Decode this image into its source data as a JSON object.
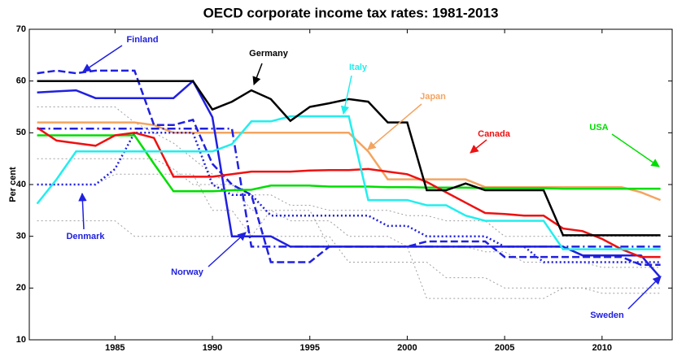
{
  "chart_data": {
    "type": "line",
    "title": "OECD corporate income tax rates: 1981-2013",
    "y_label": "Per cent",
    "x": [
      1981,
      1982,
      1983,
      1984,
      1985,
      1986,
      1987,
      1988,
      1989,
      1990,
      1991,
      1992,
      1993,
      1994,
      1995,
      1996,
      1997,
      1998,
      1999,
      2000,
      2001,
      2002,
      2003,
      2004,
      2005,
      2006,
      2007,
      2008,
      2009,
      2010,
      2011,
      2012,
      2013
    ],
    "xlim": [
      1980.6,
      2013.6
    ],
    "xticks": [
      1985,
      1990,
      1995,
      2000,
      2005,
      2010
    ],
    "ylim": [
      10,
      70
    ],
    "yticks": [
      10,
      20,
      30,
      40,
      50,
      60,
      70
    ],
    "series": [
      {
        "color": "#a0a0a0",
        "dash": "dotted",
        "values": [
          55,
          55,
          55,
          55,
          55,
          52,
          50,
          48,
          45,
          42,
          40,
          38,
          38,
          36,
          36,
          35,
          35,
          35,
          35,
          34,
          34,
          33,
          33,
          33,
          30,
          30,
          30,
          30,
          30,
          30,
          30,
          30,
          30
        ]
      },
      {
        "color": "#a0a0a0",
        "dash": "dotted",
        "values": [
          45,
          45,
          45,
          45,
          45,
          45,
          45,
          43,
          40,
          40,
          40,
          35,
          35,
          33,
          33,
          33,
          30,
          30,
          30,
          28,
          28,
          28,
          28,
          27,
          27,
          25,
          25,
          25,
          25,
          24,
          24,
          24,
          24
        ]
      },
      {
        "color": "#a0a0a0",
        "dash": "dotted",
        "values": [
          40,
          40,
          40,
          40,
          42,
          42,
          42,
          42,
          42,
          35,
          35,
          30,
          30,
          30,
          30,
          30,
          25,
          25,
          25,
          25,
          25,
          22,
          22,
          22,
          20,
          20,
          20,
          20,
          20,
          19,
          19,
          19,
          19
        ]
      },
      {
        "color": "#a0a0a0",
        "dash": "dotted",
        "values": [
          33,
          33,
          33,
          33,
          33,
          30,
          30,
          30,
          30,
          30,
          30,
          30,
          35,
          35,
          35,
          28,
          28,
          28,
          28,
          28,
          18,
          18,
          18,
          18,
          18,
          18,
          18,
          20,
          20,
          20,
          20,
          20,
          20
        ]
      },
      {
        "name": "Japan",
        "color": "#f4a460",
        "dash": "solid",
        "values": [
          52,
          52,
          52,
          52,
          52,
          52,
          51.5,
          50,
          50,
          50,
          50,
          50,
          50,
          50,
          50,
          50,
          50,
          46.4,
          41,
          41,
          41,
          41,
          41,
          39.5,
          39.5,
          39.5,
          39.5,
          39.5,
          39.5,
          39.5,
          39.5,
          38.5,
          37
        ]
      },
      {
        "name": "Denmark",
        "color": "#2020e0",
        "dash": "dotted",
        "values": [
          40,
          40,
          40,
          40,
          43,
          50,
          50,
          50,
          50,
          40,
          38,
          38,
          34,
          34,
          34,
          34,
          34,
          34,
          32,
          32,
          30,
          30,
          30,
          30,
          28,
          28,
          25,
          25,
          25,
          25,
          25,
          25,
          25
        ]
      },
      {
        "name": "Norway",
        "color": "#2020e0",
        "dash": "dashdot",
        "values": [
          50.8,
          50.8,
          50.8,
          50.8,
          50.8,
          50.8,
          50.8,
          50.8,
          50.8,
          50.8,
          50.8,
          28,
          28,
          28,
          28,
          28,
          28,
          28,
          28,
          28,
          28,
          28,
          28,
          28,
          28,
          28,
          28,
          28,
          28,
          28,
          28,
          28,
          28
        ]
      },
      {
        "name": "Finland",
        "color": "#2020e0",
        "dash": "dashed",
        "values": [
          61.5,
          62,
          61.5,
          62,
          62,
          62,
          51.5,
          51.5,
          52.5,
          44,
          40,
          38,
          25,
          25,
          25,
          28,
          28,
          28,
          28,
          28,
          29,
          29,
          29,
          29,
          26,
          26,
          26,
          26,
          26,
          26,
          26,
          24.5,
          24.5
        ]
      },
      {
        "name": "Sweden",
        "color": "#2020e0",
        "dash": "solid",
        "values": [
          57.8,
          58,
          58.2,
          56.7,
          56.7,
          56.7,
          56.7,
          56.7,
          60,
          53,
          30,
          30,
          30,
          28,
          28,
          28,
          28,
          28,
          28,
          28,
          28,
          28,
          28,
          28,
          28,
          28,
          28,
          28,
          26.3,
          26.3,
          26.3,
          26.3,
          22
        ]
      },
      {
        "name": "USA",
        "color": "#00dd00",
        "dash": "solid",
        "values": [
          49.5,
          49.5,
          49.5,
          49.5,
          49.5,
          49.5,
          44,
          38.7,
          38.7,
          38.7,
          38.9,
          39,
          39.8,
          39.8,
          39.8,
          39.6,
          39.6,
          39.6,
          39.5,
          39.5,
          39.4,
          39.4,
          39.4,
          39.3,
          39.3,
          39.3,
          39.3,
          39.2,
          39.2,
          39.2,
          39.2,
          39.2,
          39.2
        ]
      },
      {
        "name": "Canada",
        "color": "#ee1111",
        "dash": "solid",
        "values": [
          51,
          48.5,
          48,
          47.5,
          49.5,
          50,
          49,
          41.5,
          41.5,
          41.5,
          42,
          42.5,
          42.5,
          42.5,
          42.7,
          42.8,
          42.8,
          43,
          42.5,
          42,
          40.5,
          38.5,
          36.5,
          34.5,
          34.3,
          34,
          34,
          31.5,
          31,
          29.5,
          27.5,
          26,
          26
        ]
      },
      {
        "name": "Italy",
        "color": "#22eeee",
        "dash": "solid",
        "values": [
          36.3,
          41,
          46.4,
          46.4,
          46.4,
          46.4,
          46.4,
          46.4,
          46.4,
          46.4,
          47.8,
          52.2,
          52.2,
          53.2,
          53.2,
          53.2,
          53.2,
          37,
          37,
          37,
          36,
          36,
          34,
          33,
          33,
          33,
          33,
          27.5,
          27.5,
          27.5,
          27.5,
          27.5,
          27.5
        ]
      },
      {
        "name": "Germany",
        "color": "#000000",
        "dash": "solid",
        "values": [
          60,
          60,
          60,
          60,
          60,
          60,
          60,
          60,
          60,
          54.5,
          56,
          58.2,
          56.5,
          52.3,
          55,
          55.7,
          56.5,
          56,
          52,
          52,
          38.9,
          38.9,
          40.2,
          38.9,
          38.9,
          38.9,
          38.9,
          30.2,
          30.2,
          30.2,
          30.2,
          30.2,
          30.2
        ]
      }
    ]
  }
}
